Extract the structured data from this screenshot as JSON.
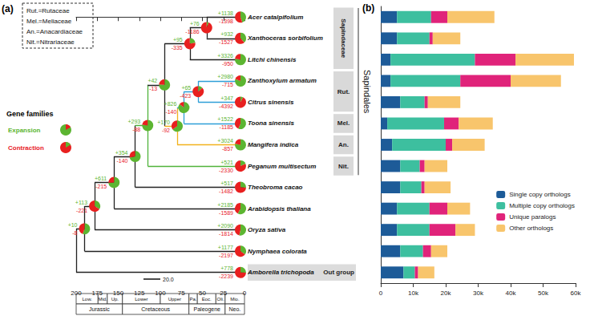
{
  "panel_a": {
    "label": "(a)",
    "abbreviations": [
      "Rut.=Rutaceae",
      "Mel.=Meliaceae",
      "An.=Anacardiaceae",
      "Nit.=Nitrariaceae"
    ],
    "legend": {
      "title": "Gene families",
      "items": [
        {
          "name": "Expansion",
          "color": "#5cb531"
        },
        {
          "name": "Contraction",
          "color": "#e8201f"
        }
      ]
    },
    "time_axis": {
      "xlim": [
        200,
        0
      ],
      "xticks": [
        0,
        25,
        50,
        75,
        100,
        125,
        150,
        175,
        200
      ]
    },
    "scale_bar": {
      "length": 20,
      "label": "20.0"
    },
    "periods": [
      {
        "name": "Low.",
        "start": 200,
        "end": 174
      },
      {
        "name": "Mid.",
        "start": 174,
        "end": 163
      },
      {
        "name": "Up.",
        "start": 163,
        "end": 145
      },
      {
        "name": "Lower",
        "start": 145,
        "end": 100
      },
      {
        "name": "Upper",
        "start": 100,
        "end": 66
      },
      {
        "name": "Pa.",
        "start": 66,
        "end": 56
      },
      {
        "name": "Eoc.",
        "start": 56,
        "end": 34
      },
      {
        "name": "Oli.",
        "start": 34,
        "end": 23
      },
      {
        "name": "Mio.",
        "start": 23,
        "end": 0
      }
    ],
    "eras": [
      {
        "name": "Jurassic",
        "start": 200,
        "end": 145
      },
      {
        "name": "Cretaceous",
        "start": 145,
        "end": 66
      },
      {
        "name": "Paleogene",
        "start": 66,
        "end": 23
      },
      {
        "name": "Neo.",
        "start": 23,
        "end": 0
      }
    ],
    "families": [
      {
        "label": "Sapindaceae",
        "tips": [
          0,
          2
        ]
      },
      {
        "label": "Rut.",
        "tips": [
          3,
          4
        ]
      },
      {
        "label": "Mel.",
        "tips": [
          5,
          5
        ]
      },
      {
        "label": "An.",
        "tips": [
          6,
          6
        ]
      },
      {
        "label": "Nit.",
        "tips": [
          7,
          7
        ]
      }
    ],
    "clade": {
      "label": "Sapindales",
      "tips": [
        0,
        7
      ]
    },
    "outgroup": {
      "label": "Out group",
      "tip": 12
    },
    "tree": {
      "age": 200,
      "children": [
        {
          "age": 190,
          "values": [
            10,
            8
          ],
          "value_labels": [
            "+10",
            "-8"
          ],
          "children": [
            {
              "age": 178,
              "values": [
                113,
                221
              ],
              "value_labels": [
                "+113",
                "-221"
              ],
              "children": [
                {
                  "age": 155,
                  "values": [
                    611,
                    215
                  ],
                  "value_labels": [
                    "+611",
                    "-215"
                  ],
                  "children": [
                    {
                      "age": 130,
                      "values": [
                        354,
                        140
                      ],
                      "value_labels": [
                        "+354",
                        "-140"
                      ],
                      "children": [
                        {
                          "age": 115,
                          "values": [
                            293,
                            88
                          ],
                          "value_labels": [
                            "+293",
                            "-88"
                          ],
                          "color": "#4fb33b",
                          "children": [
                            {
                              "age": 95,
                              "values": [
                                42,
                                13
                              ],
                              "value_labels": [
                                "+42",
                                "-13"
                              ],
                              "color": "#222222",
                              "children": [
                                {
                                  "age": 65,
                                  "values": [
                                    95,
                                    335
                                  ],
                                  "value_labels": [
                                    "+95",
                                    "-335"
                                  ],
                                  "children": [
                                    {
                                      "age": 45,
                                      "values": [
                                        76,
                                        1186
                                      ],
                                      "value_labels": [
                                        "+76",
                                        "-1186"
                                      ],
                                      "children": [
                                        {
                                          "name": "Acer catalpifolium",
                                          "values": [
                                            1138,
                                            1398
                                          ],
                                          "value_labels": [
                                            "+1138",
                                            "-1398"
                                          ]
                                        },
                                        {
                                          "name": "Xanthoceras sorbifolium",
                                          "values": [
                                            932,
                                            1527
                                          ],
                                          "value_labels": [
                                            "+932",
                                            "-1527"
                                          ]
                                        }
                                      ]
                                    },
                                    {
                                      "name": "Litchi chinensis",
                                      "values": [
                                        3326,
                                        950
                                      ],
                                      "value_labels": [
                                        "+3326",
                                        "-950"
                                      ]
                                    }
                                  ]
                                },
                                {
                                  "age": 80,
                                  "values": [
                                    170,
                                    92
                                  ],
                                  "value_labels": [
                                    "+170",
                                    "-92"
                                  ],
                                  "color": "#f2b21d",
                                  "children": [
                                    {
                                      "age": 72,
                                      "values": [
                                        826,
                                        140
                                      ],
                                      "value_labels": [
                                        "+826",
                                        "-140"
                                      ],
                                      "color": "#2e9fd8",
                                      "children": [
                                        {
                                          "age": 55,
                                          "values": [
                                            65,
                                            423
                                          ],
                                          "value_labels": [
                                            "+65",
                                            "-423"
                                          ],
                                          "children": [
                                            {
                                              "name": "Zanthoxylum armatum",
                                              "values": [
                                                2980,
                                                715
                                              ],
                                              "value_labels": [
                                                "+2980",
                                                "-715"
                                              ]
                                            },
                                            {
                                              "name": "Citrus sinensis",
                                              "values": [
                                                347,
                                                4392
                                              ],
                                              "value_labels": [
                                                "+347",
                                                "-4392"
                                              ]
                                            }
                                          ]
                                        },
                                        {
                                          "name": "Toona sinensis",
                                          "values": [
                                            1522,
                                            1185
                                          ],
                                          "value_labels": [
                                            "+1522",
                                            "-1185"
                                          ]
                                        }
                                      ]
                                    },
                                    {
                                      "name": "Mangifera indica",
                                      "values": [
                                        3024,
                                        857
                                      ],
                                      "value_labels": [
                                        "+3024",
                                        "-857"
                                      ]
                                    }
                                  ]
                                }
                              ]
                            },
                            {
                              "name": "Peganum multisectum",
                              "values": [
                                521,
                                2330
                              ],
                              "value_labels": [
                                "+521",
                                "-2330"
                              ]
                            }
                          ]
                        },
                        {
                          "name": "Theobroma cacao",
                          "values": [
                            517,
                            1482
                          ],
                          "value_labels": [
                            "+517",
                            "-1482"
                          ]
                        }
                      ]
                    },
                    {
                      "name": "Arabidopsis thaliana",
                      "values": [
                        2185,
                        1589
                      ],
                      "value_labels": [
                        "+2185",
                        "-1589"
                      ]
                    }
                  ]
                },
                {
                  "name": "Oryza sativa",
                  "values": [
                    2090,
                    1814
                  ],
                  "value_labels": [
                    "+2090",
                    "-1814"
                  ]
                }
              ]
            },
            {
              "name": "Nymphaea colorata",
              "values": [
                1177,
                2197
              ],
              "value_labels": [
                "+1177",
                "-2197"
              ]
            }
          ]
        },
        {
          "name": "Amborella trichopoda",
          "values": [
            778,
            2239
          ],
          "value_labels": [
            "+778",
            "-2239"
          ]
        }
      ]
    }
  },
  "chart_data": {
    "type": "bar",
    "panel_label": "(b)",
    "orientation": "horizontal",
    "stacked": true,
    "grid": false,
    "legend": "lower right",
    "tick_labels": "x",
    "categories": [
      null,
      null,
      null,
      null,
      null,
      null,
      null,
      null,
      null,
      null,
      null,
      null,
      null
    ],
    "xlim": [
      0,
      60000
    ],
    "xticks": [
      0,
      {
        "value": 10000,
        "label": "10k"
      },
      {
        "value": 20000,
        "label": "20k"
      },
      {
        "value": 30000,
        "label": "30k"
      },
      {
        "value": 40000,
        "label": "40k"
      },
      {
        "value": 50000,
        "label": "50k"
      },
      {
        "value": 60000,
        "label": "60k"
      }
    ],
    "series": [
      {
        "name": "Single copy orthologs",
        "color": "#1d5b98",
        "values": [
          5000,
          5000,
          3000,
          3000,
          6000,
          2000,
          3500,
          6000,
          6000,
          5000,
          5000,
          6000,
          7000
        ]
      },
      {
        "name": "Multiple copy orthologs",
        "color": "#3dbf9f",
        "values": [
          10500,
          10000,
          26000,
          21500,
          7500,
          17500,
          16500,
          6000,
          6500,
          10000,
          10000,
          7000,
          3500
        ]
      },
      {
        "name": "Unique paralogs",
        "color": "#e0237a",
        "values": [
          5000,
          1000,
          12500,
          15500,
          1000,
          4500,
          2000,
          1500,
          1000,
          5500,
          8000,
          2500,
          1000
        ]
      },
      {
        "name": "Other orthologs",
        "color": "#f8c56c",
        "values": [
          14500,
          8500,
          18000,
          15500,
          10000,
          10500,
          10000,
          7000,
          8000,
          7000,
          6000,
          5000,
          5000
        ]
      }
    ]
  }
}
